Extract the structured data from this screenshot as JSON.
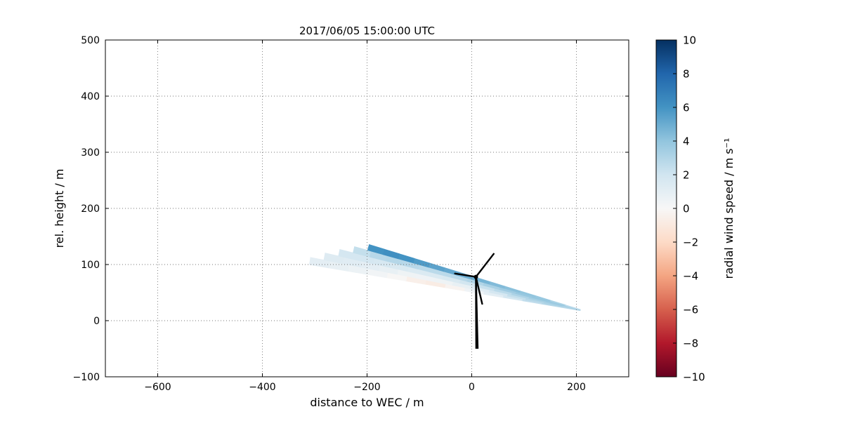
{
  "figure": {
    "title": "2017/06/05 15:00:00 UTC",
    "background": "#ffffff"
  },
  "axes": {
    "xlabel": "distance to WEC / m",
    "ylabel": "rel. height / m",
    "xlim": [
      -700,
      300
    ],
    "ylim": [
      -100,
      500
    ],
    "xticks": [
      -600,
      -400,
      -200,
      0,
      200
    ],
    "xtick_labels": [
      "−600",
      "−400",
      "−200",
      "0",
      "200"
    ],
    "yticks": [
      -100,
      0,
      100,
      200,
      300,
      400,
      500
    ],
    "ytick_labels": [
      "−100",
      "0",
      "100",
      "200",
      "300",
      "400",
      "500"
    ],
    "grid": "dotted"
  },
  "colorbar": {
    "label": "radial wind speed / m s⁻¹",
    "vmin": -10,
    "vmax": 10,
    "ticks": [
      10,
      8,
      6,
      4,
      2,
      0,
      -2,
      -4,
      -6,
      -8,
      -10
    ],
    "tick_labels": [
      "10",
      "8",
      "6",
      "4",
      "2",
      "0",
      "−2",
      "−4",
      "−6",
      "−8",
      "−10"
    ],
    "colormap": "RdBu",
    "colormap_anchors": [
      "#67001f",
      "#b2182b",
      "#d6604d",
      "#f4a582",
      "#fddbc7",
      "#f7f7f7",
      "#d1e5f0",
      "#92c5de",
      "#4393c3",
      "#2166ac",
      "#053061"
    ]
  },
  "chart_data": {
    "type": "heatmap",
    "description": "Lidar sector scan (fan of beams) of radial wind speed around a wind energy converter; wedge of measurements from x≈−320 m to x≈210 m between rel. heights ≈20 m and ≈130 m, mostly positive (blue) 1–6 m/s with a weak negative (pink) patch below hub height; black wind turbine drawn at x≈0 m, hub height ≈80 m.",
    "units": "m s⁻¹",
    "scan": {
      "origin": [
        225,
        15
      ],
      "elevation_deg": [
        9.0,
        16.0
      ],
      "range_min": 18,
      "range_max": [
        555,
        425
      ],
      "rows_note": "values[row][col]: rows = elevation bands bottom→top, cols = range gates near(tip,right)→far(left)",
      "values": [
        [
          2.8,
          2.9,
          2.5,
          1.8,
          1.0,
          0.4,
          -0.3,
          -0.8,
          -0.6,
          -0.1,
          0.3,
          0.6,
          0.8,
          1.0
        ],
        [
          3.0,
          3.2,
          2.9,
          2.4,
          1.8,
          1.2,
          0.8,
          0.5,
          0.4,
          0.5,
          0.8,
          1.0,
          1.2,
          1.3
        ],
        [
          3.2,
          3.5,
          3.4,
          3.1,
          2.7,
          2.3,
          1.9,
          1.6,
          1.5,
          1.5,
          1.6,
          1.7,
          1.8,
          1.8
        ],
        [
          3.4,
          3.8,
          3.9,
          3.8,
          3.6,
          3.3,
          3.0,
          2.8,
          2.7,
          2.7,
          2.8,
          2.9,
          2.8,
          2.4
        ],
        [
          2.6,
          3.2,
          3.8,
          4.0,
          4.2,
          4.4,
          4.7,
          5.0,
          5.2,
          5.4,
          5.7,
          6.0,
          6.2,
          6.0
        ]
      ]
    },
    "turbine": {
      "tower_base": [
        10,
        -50
      ],
      "hub": [
        8,
        78
      ],
      "tower_half_width_base_m": 3,
      "tower_half_width_top_m": 1.7,
      "blade_tips": [
        [
          42,
          119
        ],
        [
          -32,
          84
        ],
        [
          20,
          30
        ]
      ],
      "color": "#000000"
    }
  }
}
